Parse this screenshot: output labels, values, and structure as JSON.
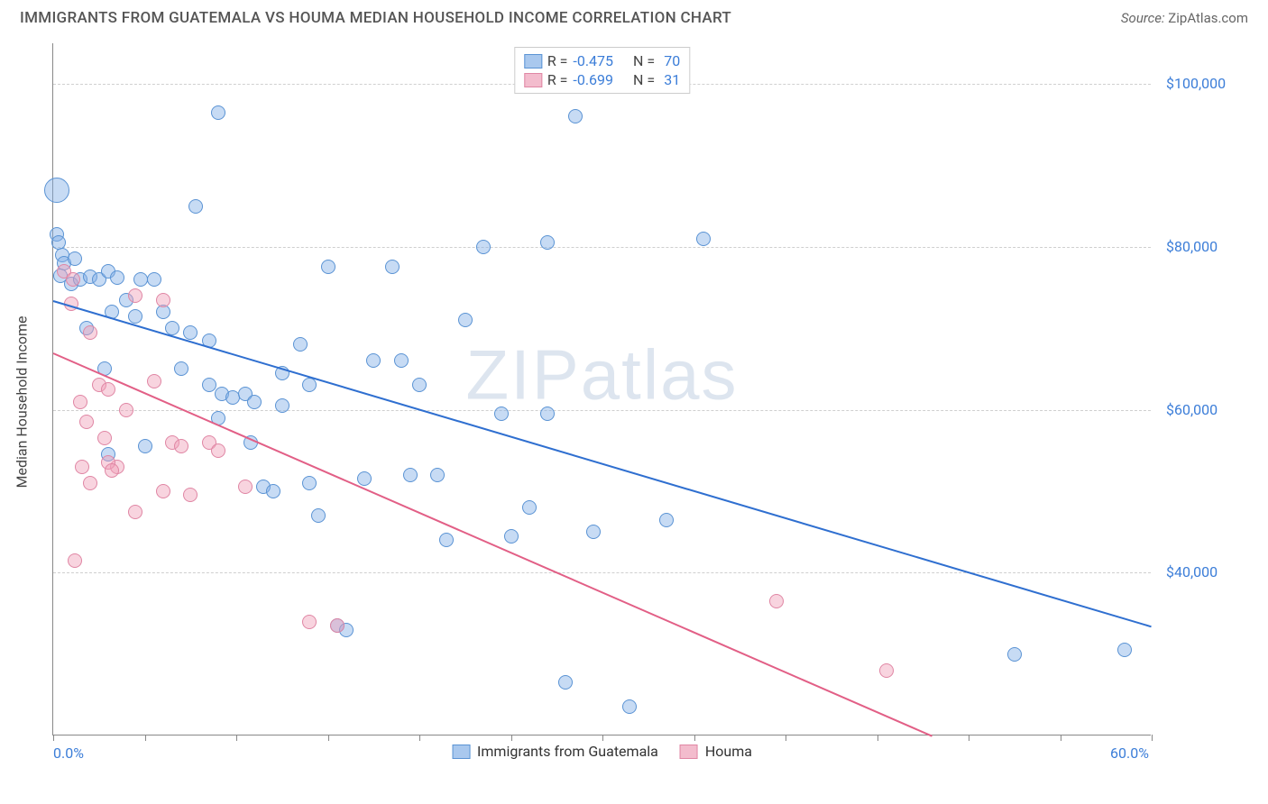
{
  "title": "IMMIGRANTS FROM GUATEMALA VS HOUMA MEDIAN HOUSEHOLD INCOME CORRELATION CHART",
  "source_label": "Source:",
  "source_value": "ZipAtlas.com",
  "ylabel": "Median Household Income",
  "watermark": "ZIPatlas",
  "chart": {
    "type": "scatter",
    "xlim": [
      0,
      60
    ],
    "ylim": [
      20000,
      105000
    ],
    "x_ticks_major": [
      0,
      10,
      20,
      30,
      40,
      50,
      60
    ],
    "x_ticks_minor_step": 5,
    "x_tick_labels": [
      {
        "x": 0,
        "label": "0.0%"
      },
      {
        "x": 60,
        "label": "60.0%"
      }
    ],
    "y_gridlines": [
      40000,
      60000,
      80000,
      100000
    ],
    "y_tick_labels": [
      {
        "y": 40000,
        "label": "$40,000"
      },
      {
        "y": 60000,
        "label": "$60,000"
      },
      {
        "y": 80000,
        "label": "$80,000"
      },
      {
        "y": 100000,
        "label": "$100,000"
      }
    ],
    "background_color": "#ffffff",
    "grid_color": "#cfcfcf",
    "axis_color": "#888888",
    "series": [
      {
        "name": "Immigrants from Guatemala",
        "fill_color": "rgba(130,175,230,0.45)",
        "border_color": "#5a93d4",
        "swatch_fill": "#a9c8ee",
        "swatch_border": "#5a93d4",
        "trend_color": "#2f6fd0",
        "stats": {
          "R": "-0.475",
          "N": "70"
        },
        "trend_line": {
          "x1": 0,
          "y1": 73500,
          "x2": 60,
          "y2": 33500
        },
        "marker_size_default": 16,
        "points": [
          {
            "x": 0.2,
            "y": 87000,
            "size": 28
          },
          {
            "x": 0.2,
            "y": 81500
          },
          {
            "x": 0.3,
            "y": 80500
          },
          {
            "x": 0.5,
            "y": 79000
          },
          {
            "x": 0.6,
            "y": 78000
          },
          {
            "x": 0.4,
            "y": 76500
          },
          {
            "x": 1.2,
            "y": 78500
          },
          {
            "x": 1.0,
            "y": 75500
          },
          {
            "x": 1.5,
            "y": 76000
          },
          {
            "x": 2.0,
            "y": 76300
          },
          {
            "x": 2.5,
            "y": 76000
          },
          {
            "x": 3.0,
            "y": 77000
          },
          {
            "x": 3.5,
            "y": 76200
          },
          {
            "x": 4.8,
            "y": 76000
          },
          {
            "x": 5.5,
            "y": 76000
          },
          {
            "x": 4.0,
            "y": 73500
          },
          {
            "x": 4.5,
            "y": 71500
          },
          {
            "x": 3.2,
            "y": 72000
          },
          {
            "x": 6.0,
            "y": 72000
          },
          {
            "x": 6.5,
            "y": 70000
          },
          {
            "x": 7.5,
            "y": 69500
          },
          {
            "x": 8.5,
            "y": 68500
          },
          {
            "x": 7.0,
            "y": 65000
          },
          {
            "x": 7.8,
            "y": 85000
          },
          {
            "x": 9.0,
            "y": 96500
          },
          {
            "x": 8.5,
            "y": 63000
          },
          {
            "x": 9.2,
            "y": 62000
          },
          {
            "x": 9.8,
            "y": 61500
          },
          {
            "x": 9.0,
            "y": 59000
          },
          {
            "x": 10.5,
            "y": 62000
          },
          {
            "x": 11.0,
            "y": 61000
          },
          {
            "x": 10.8,
            "y": 56000
          },
          {
            "x": 11.5,
            "y": 50500
          },
          {
            "x": 12.0,
            "y": 50000
          },
          {
            "x": 12.5,
            "y": 64500
          },
          {
            "x": 13.5,
            "y": 68000
          },
          {
            "x": 14.0,
            "y": 63000
          },
          {
            "x": 14.0,
            "y": 51000
          },
          {
            "x": 14.5,
            "y": 47000
          },
          {
            "x": 15.0,
            "y": 77500
          },
          {
            "x": 15.5,
            "y": 33500
          },
          {
            "x": 16.0,
            "y": 33000
          },
          {
            "x": 17.5,
            "y": 66000
          },
          {
            "x": 17.0,
            "y": 51500
          },
          {
            "x": 18.5,
            "y": 77500
          },
          {
            "x": 19.0,
            "y": 66000
          },
          {
            "x": 19.5,
            "y": 52000
          },
          {
            "x": 20.0,
            "y": 63000
          },
          {
            "x": 21.0,
            "y": 52000
          },
          {
            "x": 21.5,
            "y": 44000
          },
          {
            "x": 22.5,
            "y": 71000
          },
          {
            "x": 23.5,
            "y": 80000
          },
          {
            "x": 24.5,
            "y": 59500
          },
          {
            "x": 25.0,
            "y": 44500
          },
          {
            "x": 26.0,
            "y": 48000
          },
          {
            "x": 27.0,
            "y": 80500
          },
          {
            "x": 27.0,
            "y": 59500
          },
          {
            "x": 28.0,
            "y": 26500
          },
          {
            "x": 28.5,
            "y": 96000
          },
          {
            "x": 29.5,
            "y": 45000
          },
          {
            "x": 31.5,
            "y": 23500
          },
          {
            "x": 33.5,
            "y": 46500
          },
          {
            "x": 35.5,
            "y": 81000
          },
          {
            "x": 52.5,
            "y": 30000
          },
          {
            "x": 58.5,
            "y": 30500
          },
          {
            "x": 5.0,
            "y": 55500
          },
          {
            "x": 3.0,
            "y": 54500
          },
          {
            "x": 2.8,
            "y": 65000
          },
          {
            "x": 1.8,
            "y": 70000
          },
          {
            "x": 12.5,
            "y": 60500
          }
        ]
      },
      {
        "name": "Houma",
        "fill_color": "rgba(240,160,185,0.45)",
        "border_color": "#e086a4",
        "swatch_fill": "#f3bccd",
        "swatch_border": "#e086a4",
        "trend_color": "#e25f86",
        "stats": {
          "R": "-0.699",
          "N": "31"
        },
        "trend_line": {
          "x1": 0,
          "y1": 67000,
          "x2": 48,
          "y2": 20000
        },
        "marker_size_default": 16,
        "points": [
          {
            "x": 0.6,
            "y": 77000
          },
          {
            "x": 1.1,
            "y": 76000
          },
          {
            "x": 1.0,
            "y": 73000
          },
          {
            "x": 2.0,
            "y": 69500
          },
          {
            "x": 2.5,
            "y": 63000
          },
          {
            "x": 3.0,
            "y": 62500
          },
          {
            "x": 1.5,
            "y": 61000
          },
          {
            "x": 1.8,
            "y": 58500
          },
          {
            "x": 2.8,
            "y": 56500
          },
          {
            "x": 3.5,
            "y": 53000
          },
          {
            "x": 4.5,
            "y": 74000
          },
          {
            "x": 4.0,
            "y": 60000
          },
          {
            "x": 5.5,
            "y": 63500
          },
          {
            "x": 6.0,
            "y": 73500
          },
          {
            "x": 6.5,
            "y": 56000
          },
          {
            "x": 8.5,
            "y": 56000
          },
          {
            "x": 9.0,
            "y": 55000
          },
          {
            "x": 10.5,
            "y": 50500
          },
          {
            "x": 3.0,
            "y": 53500
          },
          {
            "x": 3.2,
            "y": 52500
          },
          {
            "x": 4.5,
            "y": 47500
          },
          {
            "x": 6.0,
            "y": 50000
          },
          {
            "x": 7.5,
            "y": 49500
          },
          {
            "x": 1.2,
            "y": 41500
          },
          {
            "x": 14.0,
            "y": 34000
          },
          {
            "x": 15.5,
            "y": 33500
          },
          {
            "x": 39.5,
            "y": 36500
          },
          {
            "x": 45.5,
            "y": 28000
          },
          {
            "x": 2.0,
            "y": 51000
          },
          {
            "x": 1.6,
            "y": 53000
          },
          {
            "x": 7.0,
            "y": 55500
          }
        ]
      }
    ],
    "legend_bottom_labels": [
      "Immigrants from Guatemala",
      "Houma"
    ]
  },
  "r_label": "R =",
  "n_label": "N ="
}
